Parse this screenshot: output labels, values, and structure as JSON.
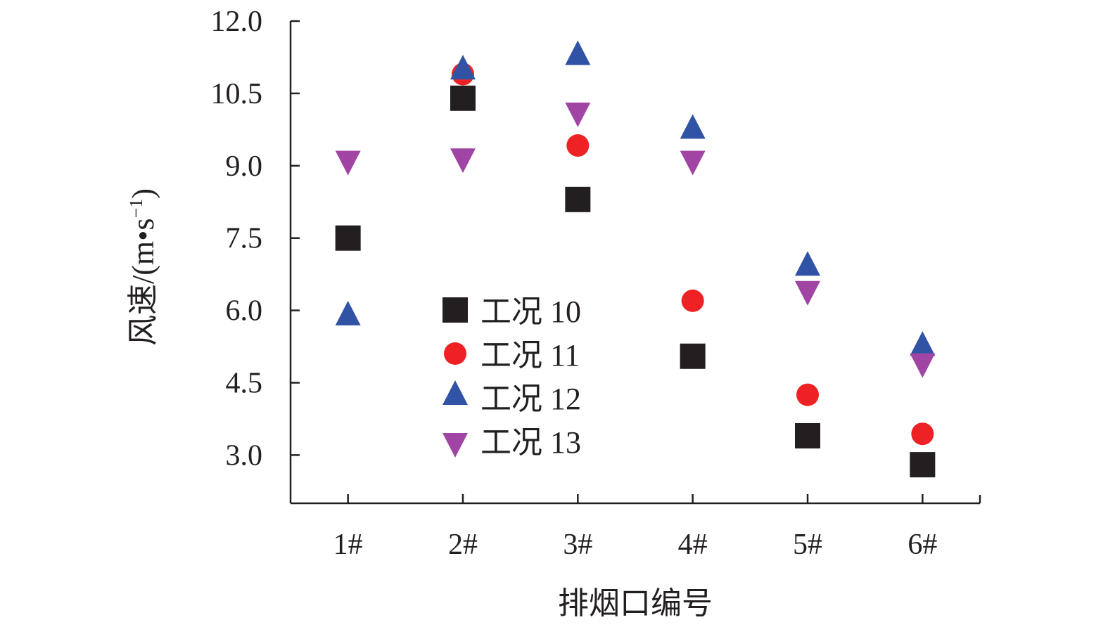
{
  "chart_data": {
    "type": "scatter",
    "title": "",
    "xlabel": "排烟口编号",
    "ylabel": "风速/(m•s⁻¹)",
    "ylabel_parts": {
      "main": "风速/(m•s",
      "sup": "−1",
      "close": ")"
    },
    "categories": [
      "1#",
      "2#",
      "3#",
      "4#",
      "5#",
      "6#"
    ],
    "ylim": [
      2.0,
      12.0
    ],
    "yticks": [
      3.0,
      4.5,
      6.0,
      7.5,
      9.0,
      10.5,
      12.0
    ],
    "ytick_labels": [
      "3.0",
      "4.5",
      "6.0",
      "7.5",
      "9.0",
      "10.5",
      "12.0"
    ],
    "grid": false,
    "legend_position": "center-left-inside",
    "series": [
      {
        "name": "工况 10",
        "marker": "square",
        "color": "#231f20",
        "values": [
          7.5,
          10.4,
          8.3,
          5.05,
          3.4,
          2.8
        ]
      },
      {
        "name": "工况 11",
        "marker": "circle",
        "color": "#ee2124",
        "values": [
          null,
          10.9,
          9.42,
          6.2,
          4.25,
          3.44
        ]
      },
      {
        "name": "工况 12",
        "marker": "triangle-up",
        "color": "#3153a5",
        "values": [
          5.85,
          10.95,
          11.25,
          9.72,
          6.88,
          5.22
        ]
      },
      {
        "name": "工况 13",
        "marker": "triangle-down",
        "color": "#a145a5",
        "values": [
          9.15,
          9.2,
          10.15,
          9.15,
          6.45,
          4.95
        ]
      }
    ]
  }
}
